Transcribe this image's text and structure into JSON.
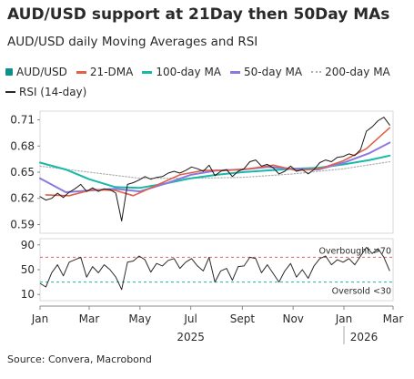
{
  "title": "AUD/USD support at 21Day then 50Day MAs",
  "subtitle": "AUD/USD daily Moving Averages and RSI",
  "source": "Source: Convera, Macrobond",
  "colors": {
    "audusd": "#1a1a1a",
    "dma21": "#e0604a",
    "dma100": "#18b8a8",
    "dma50": "#8a7ae0",
    "dma200": "#b0b0b0",
    "rsi": "#2a2a2a",
    "overbought": "#e06060",
    "oversold": "#18b8a8",
    "legend_audusd_square": "#0f8f8a"
  },
  "chart_data": [
    {
      "type": "line",
      "title": "AUD/USD support at 21Day then 50Day MAs",
      "subtitle": "AUD/USD daily Moving Averages and RSI",
      "x_axis": {
        "type": "date",
        "range": [
          "2025-01-01",
          "2026-03-01"
        ],
        "tick_labels": [
          "Jan",
          "Mar",
          "May",
          "Jul",
          "Sept",
          "Nov",
          "Jan",
          "Mar"
        ],
        "tick_dates": [
          "2025-01-01",
          "2025-03-01",
          "2025-05-01",
          "2025-07-01",
          "2025-09-01",
          "2025-11-01",
          "2026-01-01",
          "2026-03-01"
        ],
        "year_labels": [
          "2025",
          "2026"
        ]
      },
      "y_axis": {
        "range": [
          0.58,
          0.72
        ],
        "tick_labels": [
          "0.59",
          "0.62",
          "0.65",
          "0.68",
          "0.71"
        ],
        "tick_values": [
          0.59,
          0.62,
          0.65,
          0.68,
          0.71
        ]
      },
      "grid": false,
      "legend": "top",
      "series": [
        {
          "name": "AUD/USD",
          "points": [
            [
              "2025-01-01",
              0.622
            ],
            [
              "2025-01-08",
              0.618
            ],
            [
              "2025-01-15",
              0.62
            ],
            [
              "2025-01-22",
              0.626
            ],
            [
              "2025-01-29",
              0.621
            ],
            [
              "2025-02-05",
              0.627
            ],
            [
              "2025-02-12",
              0.631
            ],
            [
              "2025-02-19",
              0.636
            ],
            [
              "2025-02-26",
              0.628
            ],
            [
              "2025-03-05",
              0.632
            ],
            [
              "2025-03-12",
              0.628
            ],
            [
              "2025-03-19",
              0.631
            ],
            [
              "2025-03-26",
              0.63
            ],
            [
              "2025-04-02",
              0.626
            ],
            [
              "2025-04-09",
              0.594
            ],
            [
              "2025-04-16",
              0.636
            ],
            [
              "2025-04-23",
              0.638
            ],
            [
              "2025-04-30",
              0.641
            ],
            [
              "2025-05-07",
              0.645
            ],
            [
              "2025-05-14",
              0.642
            ],
            [
              "2025-05-21",
              0.644
            ],
            [
              "2025-05-28",
              0.645
            ],
            [
              "2025-06-04",
              0.649
            ],
            [
              "2025-06-11",
              0.651
            ],
            [
              "2025-06-18",
              0.649
            ],
            [
              "2025-06-25",
              0.652
            ],
            [
              "2025-07-02",
              0.656
            ],
            [
              "2025-07-09",
              0.654
            ],
            [
              "2025-07-16",
              0.651
            ],
            [
              "2025-07-23",
              0.658
            ],
            [
              "2025-07-30",
              0.646
            ],
            [
              "2025-08-06",
              0.651
            ],
            [
              "2025-08-13",
              0.653
            ],
            [
              "2025-08-20",
              0.645
            ],
            [
              "2025-08-27",
              0.651
            ],
            [
              "2025-09-03",
              0.654
            ],
            [
              "2025-09-10",
              0.662
            ],
            [
              "2025-09-17",
              0.664
            ],
            [
              "2025-09-24",
              0.657
            ],
            [
              "2025-10-01",
              0.659
            ],
            [
              "2025-10-08",
              0.655
            ],
            [
              "2025-10-15",
              0.648
            ],
            [
              "2025-10-22",
              0.651
            ],
            [
              "2025-10-29",
              0.657
            ],
            [
              "2025-11-05",
              0.651
            ],
            [
              "2025-11-12",
              0.653
            ],
            [
              "2025-11-19",
              0.648
            ],
            [
              "2025-11-26",
              0.653
            ],
            [
              "2025-12-03",
              0.661
            ],
            [
              "2025-12-10",
              0.664
            ],
            [
              "2025-12-17",
              0.662
            ],
            [
              "2025-12-24",
              0.667
            ],
            [
              "2025-12-31",
              0.668
            ],
            [
              "2026-01-07",
              0.671
            ],
            [
              "2026-01-14",
              0.669
            ],
            [
              "2026-01-21",
              0.676
            ],
            [
              "2026-01-28",
              0.697
            ],
            [
              "2026-02-04",
              0.702
            ],
            [
              "2026-02-11",
              0.709
            ],
            [
              "2026-02-18",
              0.713
            ],
            [
              "2026-02-25",
              0.704
            ]
          ]
        },
        {
          "name": "21-DMA",
          "points": [
            [
              "2025-01-08",
              0.624
            ],
            [
              "2025-02-05",
              0.623
            ],
            [
              "2025-03-05",
              0.63
            ],
            [
              "2025-04-02",
              0.629
            ],
            [
              "2025-04-23",
              0.623
            ],
            [
              "2025-05-21",
              0.635
            ],
            [
              "2025-06-18",
              0.647
            ],
            [
              "2025-07-16",
              0.652
            ],
            [
              "2025-08-13",
              0.652
            ],
            [
              "2025-09-10",
              0.654
            ],
            [
              "2025-10-08",
              0.658
            ],
            [
              "2025-11-05",
              0.652
            ],
            [
              "2025-12-03",
              0.654
            ],
            [
              "2025-12-31",
              0.663
            ],
            [
              "2026-01-28",
              0.677
            ],
            [
              "2026-02-25",
              0.701
            ]
          ]
        },
        {
          "name": "100-day MA",
          "points": [
            [
              "2025-01-01",
              0.661
            ],
            [
              "2025-02-01",
              0.653
            ],
            [
              "2025-03-01",
              0.642
            ],
            [
              "2025-04-01",
              0.633
            ],
            [
              "2025-05-01",
              0.632
            ],
            [
              "2025-06-01",
              0.637
            ],
            [
              "2025-07-01",
              0.643
            ],
            [
              "2025-08-01",
              0.647
            ],
            [
              "2025-09-01",
              0.65
            ],
            [
              "2025-10-01",
              0.652
            ],
            [
              "2025-11-01",
              0.654
            ],
            [
              "2025-12-01",
              0.655
            ],
            [
              "2026-01-01",
              0.659
            ],
            [
              "2026-02-01",
              0.664
            ],
            [
              "2026-02-25",
              0.669
            ]
          ]
        },
        {
          "name": "50-day MA",
          "points": [
            [
              "2025-01-01",
              0.643
            ],
            [
              "2025-02-01",
              0.627
            ],
            [
              "2025-03-01",
              0.629
            ],
            [
              "2025-04-01",
              0.631
            ],
            [
              "2025-05-01",
              0.628
            ],
            [
              "2025-06-01",
              0.637
            ],
            [
              "2025-07-01",
              0.647
            ],
            [
              "2025-08-01",
              0.652
            ],
            [
              "2025-09-01",
              0.653
            ],
            [
              "2025-10-01",
              0.656
            ],
            [
              "2025-11-01",
              0.654
            ],
            [
              "2025-12-01",
              0.653
            ],
            [
              "2026-01-01",
              0.661
            ],
            [
              "2026-02-01",
              0.672
            ],
            [
              "2026-02-25",
              0.684
            ]
          ]
        },
        {
          "name": "200-day MA",
          "points": [
            [
              "2025-01-01",
              0.657
            ],
            [
              "2025-03-01",
              0.65
            ],
            [
              "2025-05-01",
              0.643
            ],
            [
              "2025-07-01",
              0.643
            ],
            [
              "2025-09-01",
              0.644
            ],
            [
              "2025-11-01",
              0.648
            ],
            [
              "2026-01-01",
              0.654
            ],
            [
              "2026-02-25",
              0.662
            ]
          ]
        }
      ]
    },
    {
      "type": "line",
      "x_axis": {
        "type": "date",
        "range": [
          "2025-01-01",
          "2026-03-01"
        ]
      },
      "y_axis": {
        "range": [
          0,
          100
        ],
        "tick_labels": [
          "10",
          "50",
          "90"
        ],
        "tick_values": [
          10,
          50,
          90
        ]
      },
      "grid": false,
      "series": [
        {
          "name": "RSI (14-day)",
          "points": [
            [
              "2025-01-01",
              28
            ],
            [
              "2025-01-08",
              22
            ],
            [
              "2025-01-15",
              45
            ],
            [
              "2025-01-22",
              58
            ],
            [
              "2025-01-29",
              40
            ],
            [
              "2025-02-05",
              62
            ],
            [
              "2025-02-12",
              66
            ],
            [
              "2025-02-19",
              70
            ],
            [
              "2025-02-26",
              38
            ],
            [
              "2025-03-05",
              55
            ],
            [
              "2025-03-12",
              45
            ],
            [
              "2025-03-19",
              58
            ],
            [
              "2025-03-26",
              50
            ],
            [
              "2025-04-02",
              38
            ],
            [
              "2025-04-09",
              18
            ],
            [
              "2025-04-16",
              62
            ],
            [
              "2025-04-23",
              64
            ],
            [
              "2025-04-30",
              72
            ],
            [
              "2025-05-07",
              66
            ],
            [
              "2025-05-14",
              46
            ],
            [
              "2025-05-21",
              60
            ],
            [
              "2025-05-28",
              56
            ],
            [
              "2025-06-04",
              65
            ],
            [
              "2025-06-11",
              68
            ],
            [
              "2025-06-18",
              52
            ],
            [
              "2025-06-25",
              62
            ],
            [
              "2025-07-02",
              68
            ],
            [
              "2025-07-09",
              56
            ],
            [
              "2025-07-16",
              48
            ],
            [
              "2025-07-23",
              70
            ],
            [
              "2025-07-30",
              30
            ],
            [
              "2025-08-06",
              48
            ],
            [
              "2025-08-13",
              52
            ],
            [
              "2025-08-20",
              33
            ],
            [
              "2025-08-27",
              55
            ],
            [
              "2025-09-03",
              56
            ],
            [
              "2025-09-10",
              70
            ],
            [
              "2025-09-17",
              68
            ],
            [
              "2025-09-24",
              45
            ],
            [
              "2025-10-01",
              58
            ],
            [
              "2025-10-08",
              44
            ],
            [
              "2025-10-15",
              30
            ],
            [
              "2025-10-22",
              48
            ],
            [
              "2025-10-29",
              60
            ],
            [
              "2025-11-05",
              38
            ],
            [
              "2025-11-12",
              50
            ],
            [
              "2025-11-19",
              36
            ],
            [
              "2025-11-26",
              56
            ],
            [
              "2025-12-03",
              68
            ],
            [
              "2025-12-10",
              72
            ],
            [
              "2025-12-17",
              58
            ],
            [
              "2025-12-24",
              66
            ],
            [
              "2025-12-31",
              62
            ],
            [
              "2026-01-07",
              68
            ],
            [
              "2026-01-14",
              58
            ],
            [
              "2026-01-21",
              72
            ],
            [
              "2026-01-28",
              86
            ],
            [
              "2026-02-04",
              76
            ],
            [
              "2026-02-11",
              84
            ],
            [
              "2026-02-18",
              70
            ],
            [
              "2026-02-25",
              48
            ]
          ]
        }
      ],
      "reference_lines": [
        {
          "value": 70,
          "label": "Overbought >70"
        },
        {
          "value": 30,
          "label": "Oversold <30"
        }
      ]
    }
  ]
}
